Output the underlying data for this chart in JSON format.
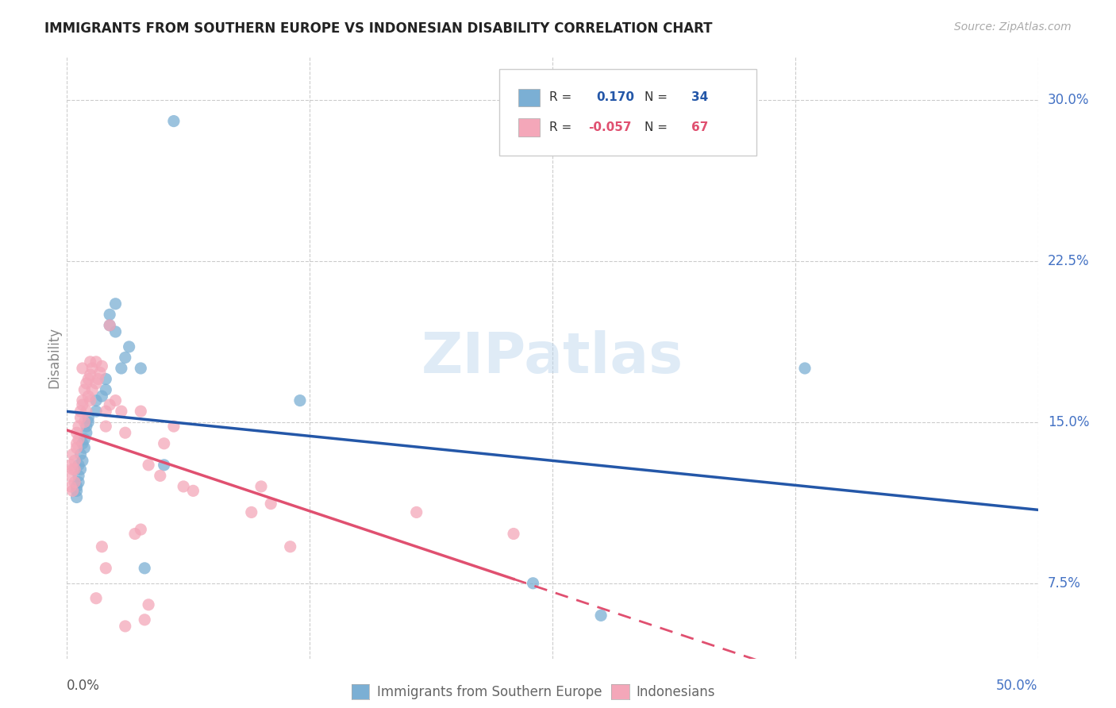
{
  "title": "IMMIGRANTS FROM SOUTHERN EUROPE VS INDONESIAN DISABILITY CORRELATION CHART",
  "source": "Source: ZipAtlas.com",
  "ylabel": "Disability",
  "yticks": [
    "7.5%",
    "15.0%",
    "22.5%",
    "30.0%"
  ],
  "ytick_vals": [
    0.075,
    0.15,
    0.225,
    0.3
  ],
  "xlim": [
    0.0,
    0.5
  ],
  "ylim": [
    0.04,
    0.32
  ],
  "watermark": "ZIPatlas",
  "blue_color": "#7bafd4",
  "pink_color": "#f4a7b9",
  "blue_line_color": "#2457a8",
  "pink_line_color": "#e05070",
  "blue_scatter": [
    [
      0.005,
      0.118
    ],
    [
      0.005,
      0.12
    ],
    [
      0.005,
      0.115
    ],
    [
      0.006,
      0.13
    ],
    [
      0.006,
      0.125
    ],
    [
      0.006,
      0.122
    ],
    [
      0.007,
      0.135
    ],
    [
      0.007,
      0.128
    ],
    [
      0.008,
      0.14
    ],
    [
      0.008,
      0.132
    ],
    [
      0.009,
      0.138
    ],
    [
      0.009,
      0.142
    ],
    [
      0.01,
      0.145
    ],
    [
      0.01,
      0.148
    ],
    [
      0.011,
      0.15
    ],
    [
      0.011,
      0.152
    ],
    [
      0.015,
      0.155
    ],
    [
      0.015,
      0.16
    ],
    [
      0.018,
      0.162
    ],
    [
      0.02,
      0.17
    ],
    [
      0.02,
      0.165
    ],
    [
      0.022,
      0.195
    ],
    [
      0.022,
      0.2
    ],
    [
      0.025,
      0.192
    ],
    [
      0.025,
      0.205
    ],
    [
      0.028,
      0.175
    ],
    [
      0.03,
      0.18
    ],
    [
      0.032,
      0.185
    ],
    [
      0.038,
      0.175
    ],
    [
      0.04,
      0.082
    ],
    [
      0.05,
      0.13
    ],
    [
      0.055,
      0.29
    ],
    [
      0.12,
      0.16
    ],
    [
      0.38,
      0.175
    ],
    [
      0.24,
      0.075
    ],
    [
      0.275,
      0.06
    ]
  ],
  "pink_scatter": [
    [
      0.002,
      0.12
    ],
    [
      0.002,
      0.125
    ],
    [
      0.002,
      0.13
    ],
    [
      0.003,
      0.118
    ],
    [
      0.003,
      0.128
    ],
    [
      0.003,
      0.135
    ],
    [
      0.004,
      0.122
    ],
    [
      0.004,
      0.132
    ],
    [
      0.004,
      0.128
    ],
    [
      0.005,
      0.14
    ],
    [
      0.005,
      0.145
    ],
    [
      0.005,
      0.138
    ],
    [
      0.006,
      0.148
    ],
    [
      0.006,
      0.142
    ],
    [
      0.007,
      0.155
    ],
    [
      0.007,
      0.152
    ],
    [
      0.008,
      0.16
    ],
    [
      0.008,
      0.158
    ],
    [
      0.009,
      0.165
    ],
    [
      0.009,
      0.15
    ],
    [
      0.01,
      0.168
    ],
    [
      0.01,
      0.155
    ],
    [
      0.011,
      0.17
    ],
    [
      0.011,
      0.162
    ],
    [
      0.012,
      0.172
    ],
    [
      0.012,
      0.16
    ],
    [
      0.013,
      0.175
    ],
    [
      0.013,
      0.165
    ],
    [
      0.015,
      0.178
    ],
    [
      0.015,
      0.168
    ],
    [
      0.016,
      0.17
    ],
    [
      0.017,
      0.173
    ],
    [
      0.018,
      0.176
    ],
    [
      0.02,
      0.155
    ],
    [
      0.02,
      0.148
    ],
    [
      0.022,
      0.195
    ],
    [
      0.022,
      0.158
    ],
    [
      0.025,
      0.16
    ],
    [
      0.028,
      0.155
    ],
    [
      0.03,
      0.145
    ],
    [
      0.035,
      0.098
    ],
    [
      0.038,
      0.1
    ],
    [
      0.042,
      0.065
    ],
    [
      0.042,
      0.13
    ],
    [
      0.048,
      0.125
    ],
    [
      0.05,
      0.14
    ],
    [
      0.055,
      0.148
    ],
    [
      0.06,
      0.12
    ],
    [
      0.065,
      0.118
    ],
    [
      0.095,
      0.108
    ],
    [
      0.1,
      0.12
    ],
    [
      0.105,
      0.112
    ],
    [
      0.115,
      0.092
    ],
    [
      0.18,
      0.108
    ],
    [
      0.23,
      0.098
    ],
    [
      0.015,
      0.068
    ],
    [
      0.03,
      0.055
    ],
    [
      0.02,
      0.082
    ],
    [
      0.008,
      0.175
    ],
    [
      0.012,
      0.178
    ],
    [
      0.038,
      0.155
    ],
    [
      0.04,
      0.058
    ],
    [
      0.018,
      0.092
    ]
  ]
}
